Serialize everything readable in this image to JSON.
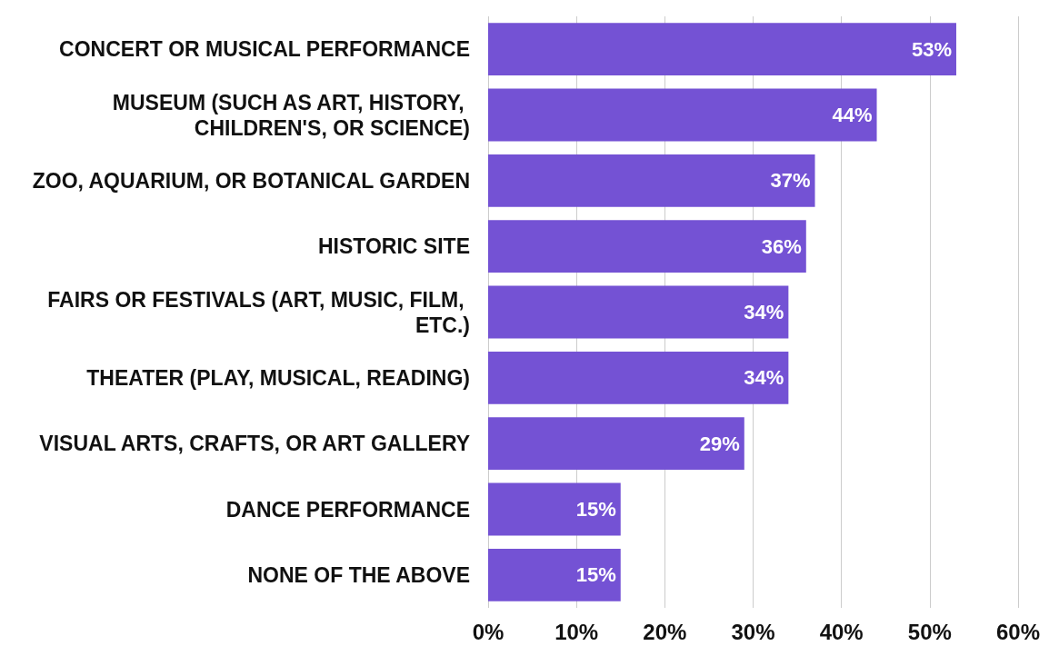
{
  "chart_data": {
    "type": "bar",
    "orientation": "horizontal",
    "categories": [
      "CONCERT OR MUSICAL PERFORMANCE",
      "MUSEUM (SUCH AS ART, HISTORY, CHILDREN'S, OR SCIENCE)",
      "ZOO, AQUARIUM, OR BOTANICAL GARDEN",
      "HISTORIC SITE",
      "FAIRS OR FESTIVALS (ART, MUSIC, FILM, ETC.)",
      "THEATER (PLAY, MUSICAL, READING)",
      "VISUAL ARTS, CRAFTS, OR ART GALLERY",
      "DANCE PERFORMANCE",
      "NONE OF THE ABOVE"
    ],
    "values": [
      53,
      44,
      37,
      36,
      34,
      34,
      29,
      15,
      15
    ],
    "value_labels": [
      "53%",
      "44%",
      "37%",
      "36%",
      "34%",
      "34%",
      "29%",
      "15%",
      "15%"
    ],
    "color": "#7452d4",
    "xlim": [
      0,
      60
    ],
    "xticks": [
      {
        "value": 0,
        "label": "0%"
      },
      {
        "value": 10,
        "label": "10%"
      },
      {
        "value": 20,
        "label": "20%"
      },
      {
        "value": 30,
        "label": "30%"
      },
      {
        "value": 40,
        "label": "40%"
      },
      {
        "value": 50,
        "label": "50%"
      },
      {
        "value": 60,
        "label": "60%"
      }
    ],
    "grid": "x"
  }
}
